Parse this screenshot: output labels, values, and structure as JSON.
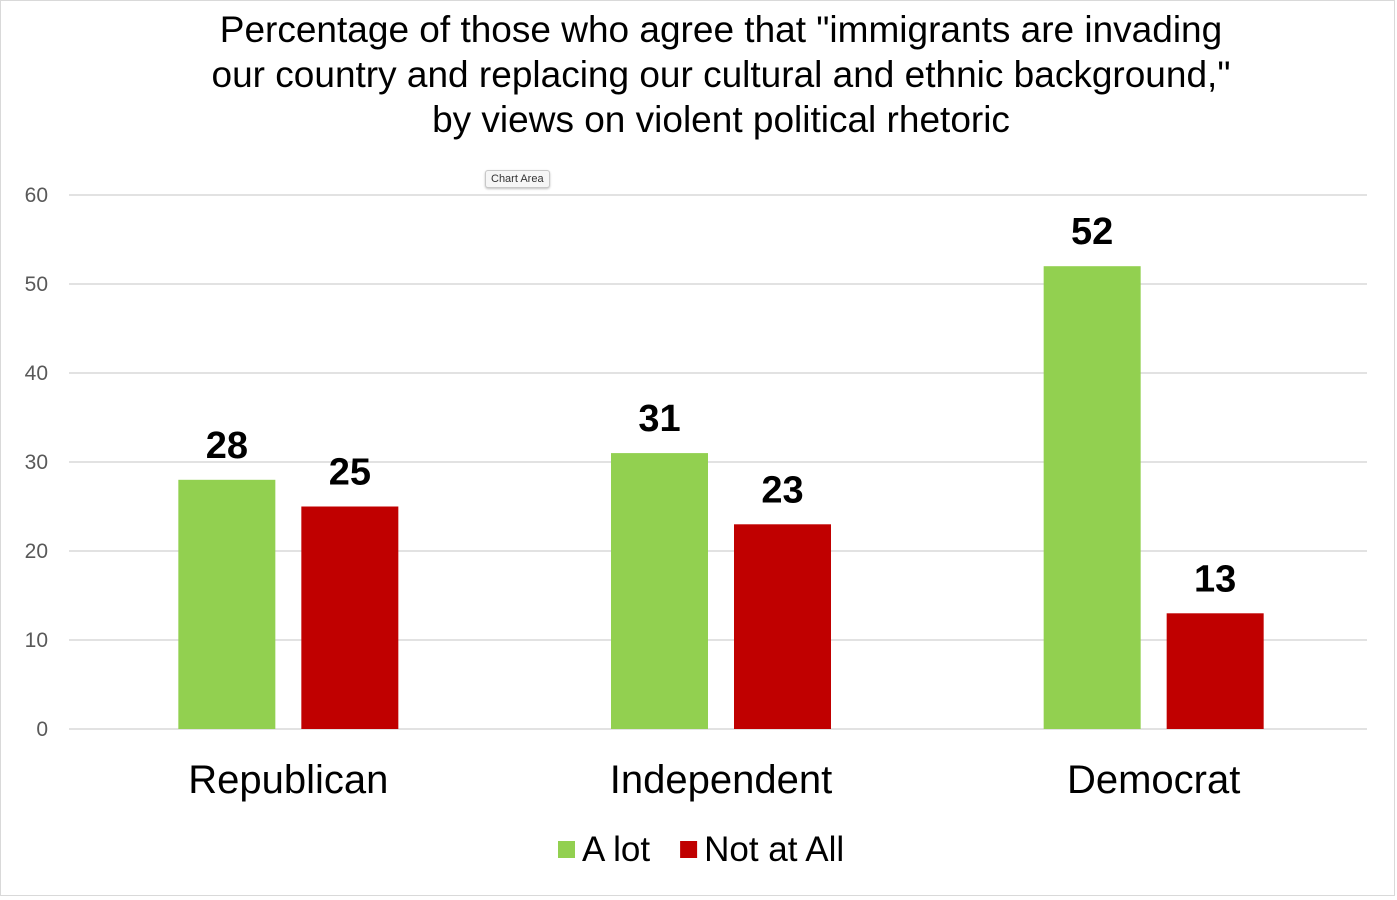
{
  "tooltip": "Chart Area",
  "chart_data": {
    "type": "bar",
    "title": "Percentage of those who agree that \"immigrants are invading\nour country and replacing our cultural and ethnic background,\"\nby views on violent political rhetoric",
    "categories": [
      "Republican",
      "Independent",
      "Democrat"
    ],
    "series": [
      {
        "name": "A lot",
        "color": "#92d050",
        "values": [
          28,
          31,
          52
        ]
      },
      {
        "name": "Not at All",
        "color": "#c00000",
        "values": [
          25,
          23,
          13
        ]
      }
    ],
    "data_labels": [
      [
        "28",
        "31",
        "52"
      ],
      [
        "25",
        "23",
        "13"
      ]
    ],
    "ylim": [
      0,
      60
    ],
    "yticks": [
      0,
      10,
      20,
      30,
      40,
      50,
      60
    ],
    "xlabel": "",
    "ylabel": "",
    "grid": true,
    "legend_position": "bottom",
    "gridline_color": "#d9d9d9"
  }
}
